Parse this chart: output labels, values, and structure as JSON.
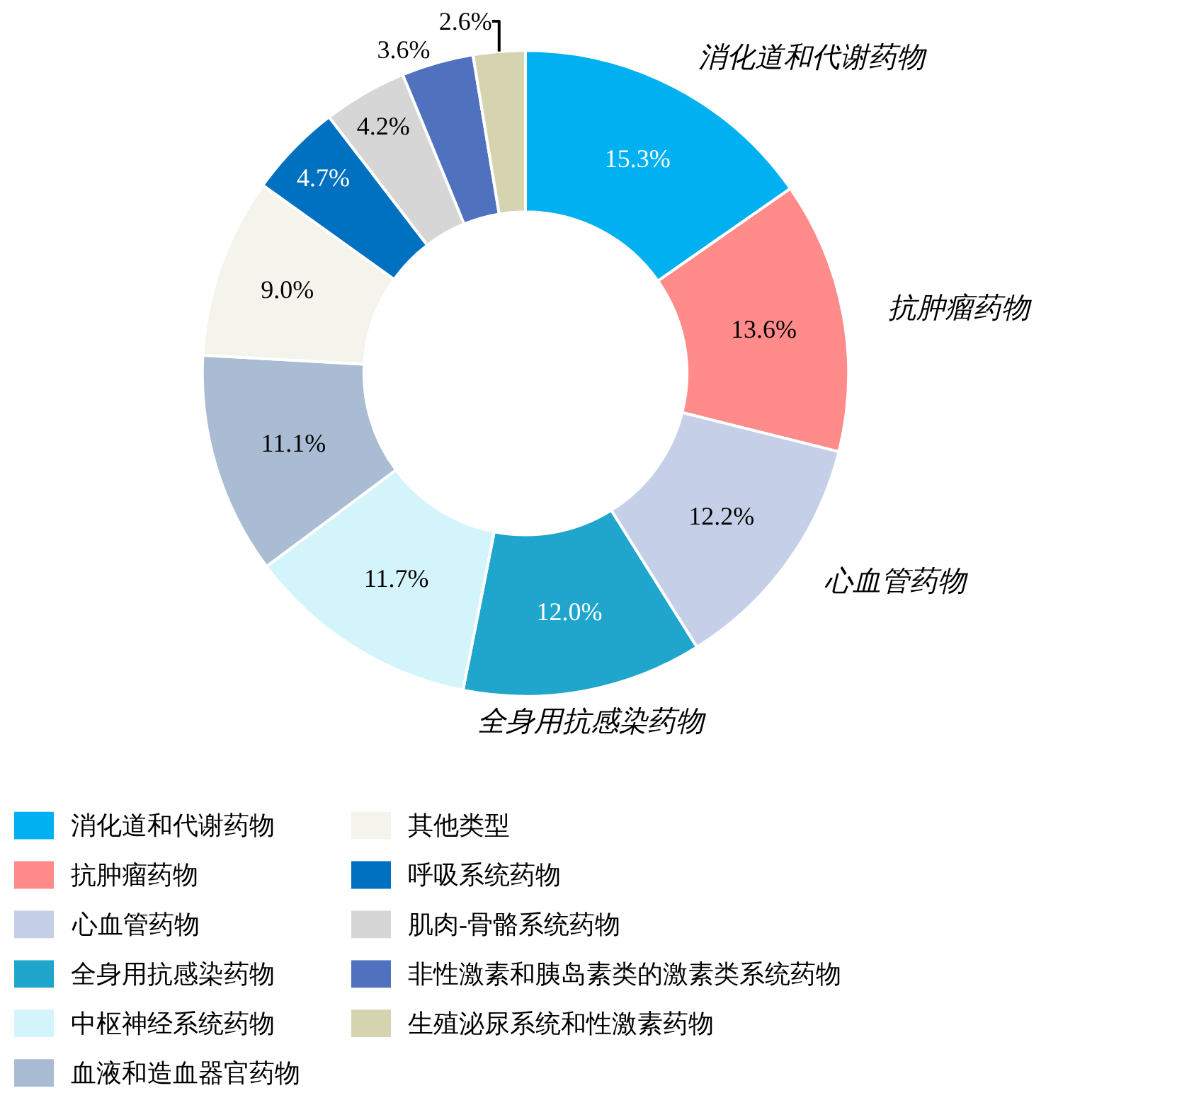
{
  "chart_data": {
    "type": "donut",
    "categories": [
      "消化道和代谢药物",
      "抗肿瘤药物",
      "心血管药物",
      "全身用抗感染药物",
      "中枢神经系统药物",
      "血液和造血器官药物",
      "其他类型",
      "呼吸系统药物",
      "肌肉-骨骼系统药物",
      "非性激素和胰岛素类的激素类系统药物",
      "生殖泌尿系统和性激素药物"
    ],
    "values": [
      15.3,
      13.6,
      12.2,
      12.0,
      11.7,
      11.1,
      9.0,
      4.7,
      4.2,
      3.6,
      2.6
    ],
    "value_labels": [
      "15.3%",
      "13.6%",
      "12.2%",
      "12.0%",
      "11.7%",
      "11.1%",
      "9.0%",
      "4.7%",
      "4.2%",
      "3.6%",
      "2.6%"
    ],
    "colors": [
      "#00b0f0",
      "#ff8b8b",
      "#c5d0e8",
      "#20a6cc",
      "#d4f4fc",
      "#a9bcd3",
      "#f4f4ec",
      "#0070c0",
      "#d6d6d6",
      "#4f71be",
      "#d6d4b0"
    ],
    "annotations": [
      "消化道和代谢药物",
      "抗肿瘤药物",
      "心血管药物",
      "全身用抗感染药物"
    ],
    "legend": "bottom"
  }
}
